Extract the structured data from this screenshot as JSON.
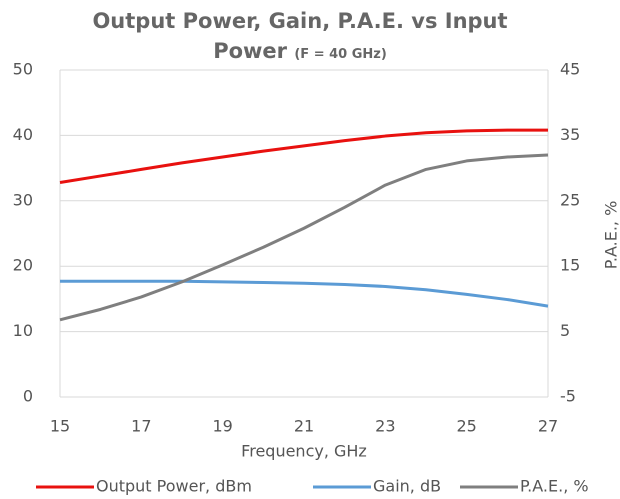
{
  "chart_data": {
    "type": "line",
    "title": "Output Power, Gain, P.A.E. vs Input Power",
    "subtitle": "(F = 40 GHz)",
    "x_label": "Frequency, GHz",
    "y2_label": "P.A.E., %",
    "x": [
      15,
      16,
      17,
      18,
      19,
      20,
      21,
      22,
      23,
      24,
      25,
      26,
      27
    ],
    "series": [
      {
        "name": "Output Power, dBm",
        "color": "#e8110f",
        "values": [
          32.8,
          33.8,
          34.8,
          35.8,
          36.7,
          37.6,
          38.4,
          39.2,
          39.9,
          40.4,
          40.7,
          40.8,
          40.8
        ]
      },
      {
        "name": "Gain, dB",
        "color": "#5b9bd5",
        "values": [
          17.7,
          17.7,
          17.7,
          17.7,
          17.6,
          17.5,
          17.4,
          17.2,
          16.9,
          16.4,
          15.7,
          14.9,
          13.9
        ]
      },
      {
        "name": "P.A.E., %",
        "color": "#7f7f7f",
        "axis": "y2",
        "values": [
          6.8,
          8.4,
          10.3,
          12.6,
          15.2,
          17.9,
          20.8,
          24.0,
          27.4,
          29.8,
          31.1,
          31.7,
          32.0
        ]
      }
    ],
    "xlim": [
      15,
      27
    ],
    "xticks": [
      15,
      17,
      19,
      21,
      23,
      25,
      27
    ],
    "ylim": [
      0,
      50
    ],
    "yticks": [
      0,
      10,
      20,
      30,
      40,
      50
    ],
    "y2lim": [
      -5,
      45
    ],
    "y2ticks": [
      -5,
      5,
      15,
      25,
      35,
      45
    ],
    "grid": true,
    "legend": "bottom"
  }
}
